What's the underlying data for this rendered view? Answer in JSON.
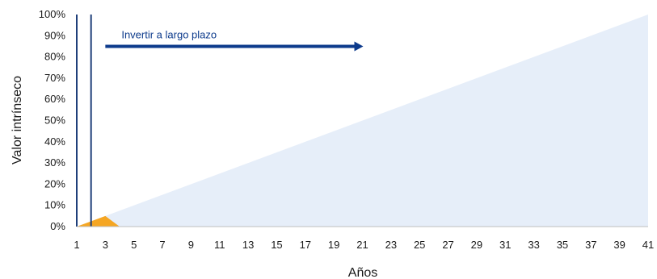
{
  "chart_data": {
    "type": "area",
    "title": "",
    "xlabel": "Años",
    "ylabel": "Valor intrínseco",
    "xlim": [
      1,
      41
    ],
    "ylim": [
      0,
      100
    ],
    "y_ticks": [
      "0%",
      "10%",
      "20%",
      "30%",
      "40%",
      "50%",
      "60%",
      "70%",
      "80%",
      "90%",
      "100%"
    ],
    "x_ticks": [
      1,
      3,
      5,
      7,
      9,
      11,
      13,
      15,
      17,
      19,
      21,
      23,
      25,
      27,
      29,
      31,
      33,
      35,
      37,
      39,
      41
    ],
    "grid": false,
    "legend": "none",
    "series": [
      {
        "kind": "area",
        "color": "#e6eef9",
        "points": [
          [
            1,
            0
          ],
          [
            41,
            100
          ],
          [
            41,
            0
          ]
        ]
      },
      {
        "kind": "area",
        "color": "#f5a623",
        "points": [
          [
            1,
            0
          ],
          [
            3,
            5
          ],
          [
            4,
            0
          ]
        ]
      }
    ],
    "vertical_lines": [
      {
        "x": 1,
        "color": "#1f3f7a"
      },
      {
        "x": 2,
        "color": "#1f3f7a"
      }
    ],
    "annotations": [
      {
        "text": "Invertir a largo plazo",
        "arrow_from": [
          3,
          85
        ],
        "arrow_to": [
          21,
          85
        ],
        "color": "#0d3b8c"
      }
    ]
  }
}
